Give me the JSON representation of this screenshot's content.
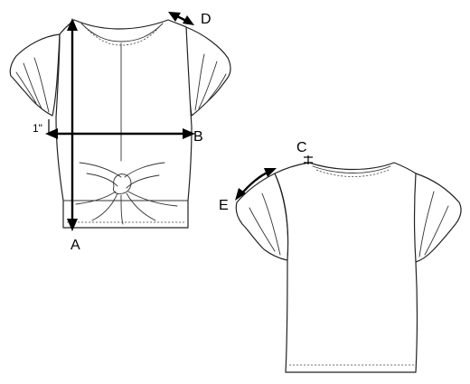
{
  "labels": {
    "a": "A",
    "b": "B",
    "c": "C",
    "d": "D",
    "e": "E",
    "one_inch": "1\""
  },
  "colors": {
    "line": "#222222",
    "measure": "#000000",
    "background": "#ffffff"
  }
}
